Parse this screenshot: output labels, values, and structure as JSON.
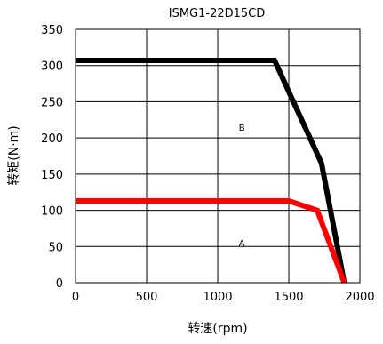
{
  "chart_data": {
    "type": "line",
    "title": "ISMG1-22D15CD",
    "xlabel": "转速(rpm)",
    "ylabel": "转矩(N·m)",
    "xlim": [
      0,
      2000
    ],
    "ylim": [
      0,
      350
    ],
    "xticks": [
      0,
      500,
      1000,
      1500,
      2000
    ],
    "yticks": [
      0,
      50,
      100,
      150,
      200,
      250,
      300,
      350
    ],
    "grid": true,
    "series": [
      {
        "color": "#000000",
        "points": [
          [
            0,
            307
          ],
          [
            1400,
            307
          ],
          [
            1730,
            165
          ],
          [
            1890,
            0
          ]
        ]
      },
      {
        "color": "#ff0000",
        "points": [
          [
            0,
            113
          ],
          [
            1500,
            113
          ],
          [
            1700,
            100
          ],
          [
            1890,
            0
          ]
        ]
      }
    ],
    "annotations": [
      {
        "text": "B",
        "x": 1170,
        "y": 215
      },
      {
        "text": "A",
        "x": 1170,
        "y": 55
      }
    ]
  }
}
